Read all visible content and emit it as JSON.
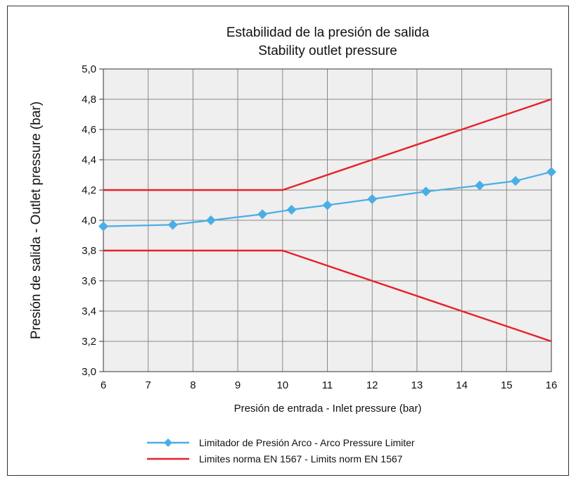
{
  "chart_data": {
    "type": "line",
    "title": "Estabilidad de la presión de salida",
    "subtitle": "Stability outlet pressure",
    "xlabel": "Presión de entrada - Inlet pressure (bar)",
    "ylabel": "Presión de salida - Outlet pressure (bar)",
    "xlim": [
      6,
      16
    ],
    "ylim": [
      3.0,
      5.0
    ],
    "x_ticks": [
      "6",
      "7",
      "8",
      "9",
      "10",
      "11",
      "12",
      "13",
      "14",
      "15",
      "16"
    ],
    "y_ticks": [
      "3,0",
      "3,2",
      "3,4",
      "3,6",
      "3,8",
      "4,0",
      "4,2",
      "4,4",
      "4,6",
      "4,8",
      "5,0"
    ],
    "grid": true,
    "legend_position": "bottom",
    "series": [
      {
        "name": "Limitador de Presión Arco - Arco Pressure Limiter",
        "color": "#4aaee6",
        "marker": "diamond",
        "x": [
          6,
          7.55,
          8.4,
          9.55,
          10.2,
          11.0,
          12.0,
          13.2,
          14.4,
          15.2,
          16
        ],
        "y": [
          3.96,
          3.97,
          4.0,
          4.04,
          4.07,
          4.1,
          4.14,
          4.19,
          4.23,
          4.26,
          4.32
        ]
      },
      {
        "name": "Limites norma EN 1567 - Limits norm EN 1567",
        "color": "#e8202a",
        "marker": "none",
        "x": [
          6,
          10,
          16
        ],
        "y": [
          4.2,
          4.2,
          4.8
        ]
      },
      {
        "name": "",
        "color": "#e8202a",
        "marker": "none",
        "x": [
          6,
          10,
          16
        ],
        "y": [
          3.8,
          3.8,
          3.2
        ]
      }
    ],
    "legend": [
      {
        "label": "Limitador de Presión Arco - Arco Pressure Limiter",
        "color": "#4aaee6",
        "marker": "diamond"
      },
      {
        "label": "Limites norma EN 1567 - Limits norm EN 1567",
        "color": "#e8202a",
        "marker": "none"
      }
    ]
  }
}
